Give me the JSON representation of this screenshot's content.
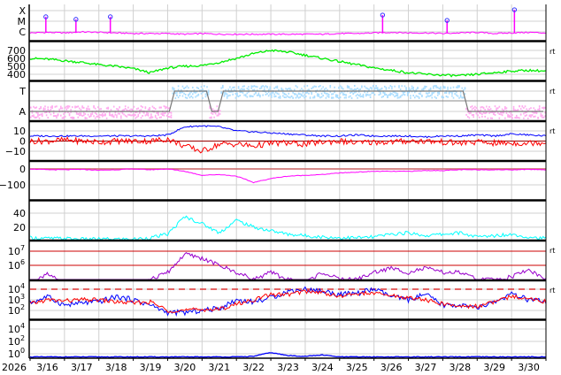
{
  "chart_data": [
    {
      "type": "line",
      "panel": "xray",
      "log": true,
      "ticks": [
        {
          "label": "X",
          "value": 0.0001
        },
        {
          "label": "M",
          "value": 1e-05
        },
        {
          "label": "C",
          "value": 1e-06
        }
      ],
      "baseline": [
        8e-07,
        9e-07,
        8e-07,
        1e-06,
        9e-07,
        8e-07,
        7e-07,
        7e-07,
        7e-07,
        6e-07,
        7e-07,
        6e-07,
        6e-07,
        6e-07,
        6e-07,
        6e-07,
        6e-07,
        6e-07,
        7e-07,
        7e-07,
        8e-07,
        9e-07,
        8e-07,
        8e-07,
        7e-07,
        8e-07,
        9e-07,
        7e-07,
        8e-07,
        9e-07,
        8e-07
      ],
      "flares": [
        {
          "time": "2026-03-16T11",
          "flux": 2.6e-05
        },
        {
          "time": "2026-03-17T08",
          "flux": 1.5e-05
        },
        {
          "time": "2026-03-18T08",
          "flux": 2.6e-05
        },
        {
          "time": "2026-03-26T06",
          "flux": 3.8e-05
        },
        {
          "time": "2026-03-28T03",
          "flux": 1.2e-05
        },
        {
          "time": "2026-03-30T02",
          "flux": 0.00012
        }
      ],
      "color": "#ff00ff",
      "marker_color": "#3333ff"
    },
    {
      "type": "line",
      "panel": "speed",
      "log": false,
      "ticks": [
        {
          "label": "700",
          "value": 700
        },
        {
          "label": "600",
          "value": 600
        },
        {
          "label": "500",
          "value": 500
        },
        {
          "label": "400",
          "value": 400
        }
      ],
      "values": [
        600,
        590,
        570,
        550,
        520,
        500,
        470,
        420,
        480,
        500,
        510,
        550,
        600,
        660,
        700,
        680,
        640,
        600,
        560,
        520,
        480,
        450,
        420,
        400,
        390,
        380,
        400,
        420,
        440,
        450,
        440
      ],
      "color": "#00ee00",
      "right_label": "rt"
    },
    {
      "type": "step",
      "panel": "imf-sector",
      "ticks": [
        {
          "label": "T",
          "value": "T"
        },
        {
          "label": "A",
          "value": "A"
        }
      ],
      "segments": [
        {
          "start": "2026-03-16T00",
          "end": "2026-03-20T03",
          "sector": "A"
        },
        {
          "start": "2026-03-20T03",
          "end": "2026-03-21T05",
          "sector": "T"
        },
        {
          "start": "2026-03-21T05",
          "end": "2026-03-21T13",
          "sector": "A"
        },
        {
          "start": "2026-03-21T13",
          "end": "2026-03-28T16",
          "sector": "T"
        },
        {
          "start": "2026-03-28T16",
          "end": "2026-03-31T00",
          "sector": "A"
        }
      ],
      "toward_color": "#aaddff",
      "away_color": "#ffaaee",
      "right_label": "rt"
    },
    {
      "type": "line",
      "panel": "imf",
      "log": false,
      "ticks": [
        {
          "label": "10",
          "value": 10
        },
        {
          "label": "0",
          "value": 0
        },
        {
          "label": "−10",
          "value": -10
        }
      ],
      "series": [
        {
          "values": [
            5,
            5,
            5,
            5,
            5,
            5,
            5,
            5,
            6,
            14,
            15,
            14,
            10,
            9,
            8,
            7,
            6,
            5,
            5,
            6,
            5,
            5,
            5,
            4,
            5,
            5,
            6,
            5,
            7,
            6,
            5
          ],
          "color": "#0000ff"
        },
        {
          "values": [
            0,
            0,
            1,
            0,
            -1,
            0,
            0,
            0,
            2,
            -5,
            -10,
            -3,
            -3,
            -5,
            -2,
            -2,
            -3,
            -1,
            0,
            -2,
            -1,
            -1,
            0,
            0,
            -1,
            -2,
            -1,
            -2,
            -2,
            -2,
            -1
          ],
          "color": "#ff0000"
        }
      ],
      "right_label": "rt"
    },
    {
      "type": "line",
      "panel": "dst",
      "log": false,
      "ticks": [
        {
          "label": "0",
          "value": 0
        },
        {
          "label": "−100",
          "value": -100
        }
      ],
      "values": [
        0,
        -5,
        -5,
        -3,
        -8,
        -5,
        0,
        -5,
        0,
        -15,
        -40,
        -35,
        -45,
        -85,
        -60,
        -45,
        -40,
        -35,
        -25,
        -20,
        -15,
        -15,
        -15,
        -10,
        -10,
        -5,
        -5,
        -5,
        -5,
        -3,
        -5
      ],
      "color": "#ff00ff"
    },
    {
      "type": "line",
      "panel": "density",
      "log": false,
      "ticks": [
        {
          "label": "40",
          "value": 40
        },
        {
          "label": "20",
          "value": 20
        }
      ],
      "values": [
        5,
        4,
        4,
        3,
        3,
        3,
        3,
        5,
        10,
        35,
        25,
        12,
        30,
        20,
        15,
        10,
        8,
        6,
        5,
        5,
        6,
        10,
        12,
        8,
        10,
        12,
        6,
        8,
        10,
        6,
        4
      ],
      "color": "#00ffff"
    },
    {
      "type": "line",
      "panel": "electron",
      "log": true,
      "ticks": [
        {
          "label": "10",
          "exp": "7",
          "value": 10000000.0
        },
        {
          "label": "10",
          "exp": "6",
          "value": 1000000.0
        }
      ],
      "log_values": [
        4.5,
        5.5,
        4.5,
        4.5,
        4.5,
        4.5,
        4.5,
        5,
        5.5,
        6.8,
        6.5,
        6,
        5.5,
        5,
        5.5,
        5,
        4.8,
        5.5,
        5,
        5,
        5.5,
        5.8,
        5.5,
        5.8,
        5.5,
        5.5,
        5,
        5,
        5.2,
        5.7,
        5
      ],
      "color": "#9900cc",
      "right_label": "rt"
    },
    {
      "type": "line",
      "panel": "flux",
      "log": true,
      "ticks": [
        {
          "label": "10",
          "exp": "4",
          "value": 10000.0
        },
        {
          "label": "10",
          "exp": "3",
          "value": 1000.0
        },
        {
          "label": "10",
          "exp": "2",
          "value": 100.0
        }
      ],
      "series": [
        {
          "log_values": [
            2.7,
            3.3,
            2.5,
            2.7,
            2.8,
            3.3,
            3.0,
            2.5,
            1.8,
            1.8,
            2.0,
            2.2,
            3.0,
            2.8,
            3.2,
            3.8,
            4.0,
            3.8,
            3.5,
            3.6,
            4.0,
            3.3,
            3.0,
            3.5,
            2.5,
            2.5,
            2.2,
            2.8,
            3.5,
            3.0,
            2.8
          ],
          "color": "#0000ff"
        },
        {
          "log_values": [
            2.6,
            3.0,
            2.9,
            3.0,
            3.0,
            2.8,
            2.7,
            2.8,
            2.0,
            2.0,
            2.1,
            2.1,
            2.6,
            3.0,
            3.5,
            3.5,
            3.8,
            3.7,
            3.3,
            3.6,
            3.6,
            3.4,
            3.2,
            3.0,
            2.6,
            2.4,
            2.4,
            2.8,
            3.3,
            3.2,
            2.8
          ],
          "color": "#ff0000"
        }
      ],
      "threshold": 10000.0,
      "right_label": "rt"
    },
    {
      "type": "line",
      "panel": "proton",
      "log": true,
      "ticks": [
        {
          "label": "10",
          "exp": "4",
          "value": 10000.0
        },
        {
          "label": "10",
          "exp": "2",
          "value": 100.0
        },
        {
          "label": "10",
          "exp": "0",
          "value": 1
        }
      ],
      "log_values": [
        -0.5,
        -0.5,
        -0.5,
        -0.5,
        -0.5,
        -0.5,
        -0.5,
        -0.5,
        -0.5,
        -0.5,
        -0.5,
        -0.5,
        -0.5,
        -0.4,
        0.2,
        -0.3,
        -0.4,
        -0.2,
        -0.5,
        -0.5,
        -0.5,
        -0.5,
        -0.5,
        -0.5,
        -0.5,
        -0.5,
        -0.5,
        -0.5,
        -0.5,
        -0.5,
        -0.5
      ],
      "color": "#0000ff"
    }
  ],
  "time_axis": {
    "year": "2026",
    "start": "2026-03-16T00",
    "end": "2026-03-31T00",
    "step_hours": 12,
    "day_labels": [
      "3/16",
      "3/17",
      "3/18",
      "3/19",
      "3/20",
      "3/21",
      "3/22",
      "3/23",
      "3/24",
      "3/25",
      "3/26",
      "3/27",
      "3/28",
      "3/29",
      "3/30"
    ]
  }
}
